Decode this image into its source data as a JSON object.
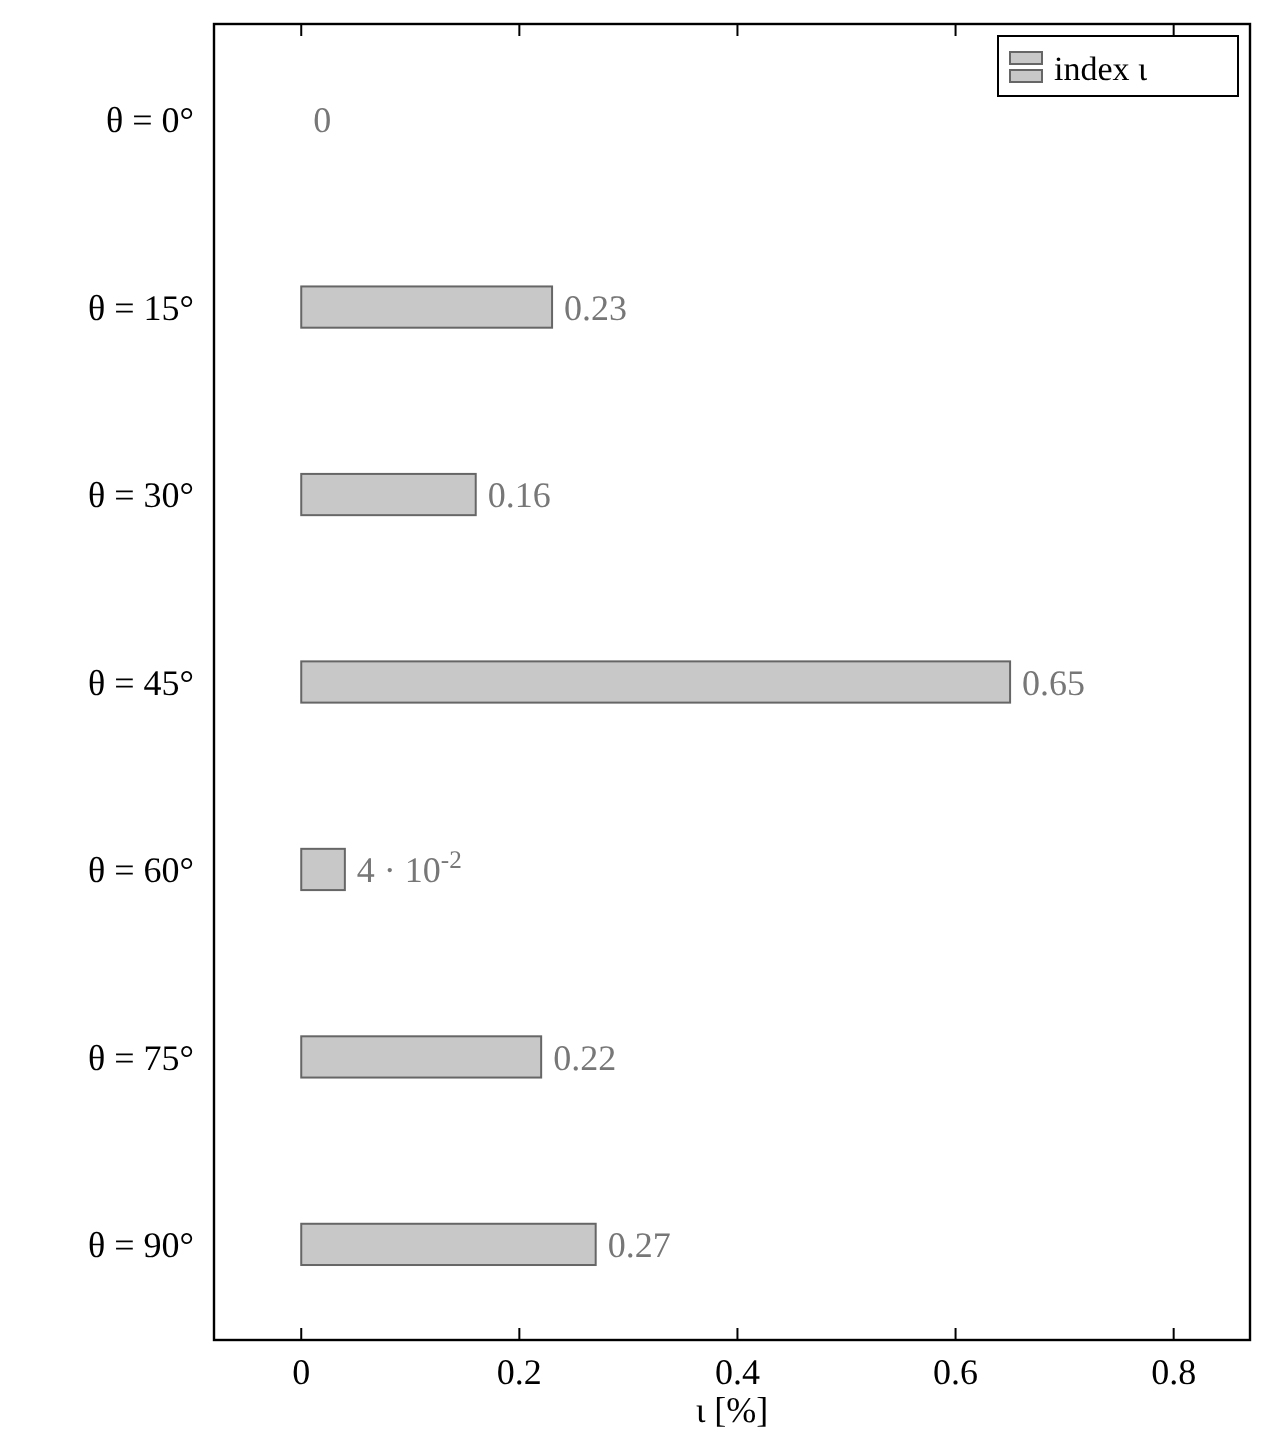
{
  "chart_data": {
    "type": "bar",
    "orientation": "horizontal",
    "categories": [
      "θ = 0°",
      "θ = 15°",
      "θ = 30°",
      "θ = 45°",
      "θ = 60°",
      "θ = 75°",
      "θ = 90°"
    ],
    "series": [
      {
        "name": "index ι",
        "color": "#c8c8c8",
        "values": [
          0,
          0.23,
          0.16,
          0.65,
          0.04,
          0.22,
          0.27
        ]
      }
    ],
    "value_labels": [
      "0",
      "0.23",
      "0.16",
      "0.65",
      "4 · 10$^{-2}$",
      "0.22",
      "0.27"
    ],
    "xlabel": "ι [%]",
    "xlim": [
      -0.08,
      0.87
    ],
    "xticks": [
      0,
      0.2,
      0.4,
      0.6,
      0.8
    ],
    "legend": "top right",
    "grid": false
  }
}
